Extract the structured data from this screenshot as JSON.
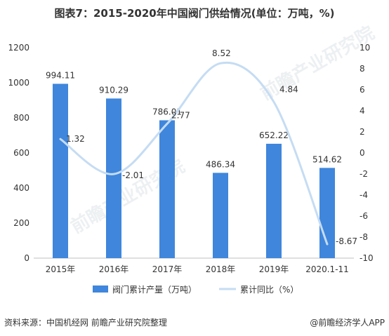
{
  "title": "图表7：2015-2020年中国阀门供给情况(单位：万吨，%)",
  "source": "资料来源：中国机经网 前瞻产业研究院整理",
  "credit": "@前瞻经济学人APP",
  "watermark": "前瞻产业研究院",
  "colors": {
    "bar": "#3f86dc",
    "line": "#c5dcf3",
    "grid": "#e6e6e6",
    "text": "#333333"
  },
  "chart_data": {
    "type": "bar",
    "categories": [
      "2015年",
      "2016年",
      "2017年",
      "2018年",
      "2019年",
      "2020.1-11"
    ],
    "series": [
      {
        "name": "阀门累计产量（万吨）",
        "type": "bar",
        "axis": "left",
        "values": [
          994.11,
          910.29,
          786.01,
          486.34,
          652.22,
          514.62
        ],
        "labels": [
          "994.11",
          "910.29",
          "786.01",
          "486.34",
          "652.22",
          "514.62"
        ]
      },
      {
        "name": "累计同比（%）",
        "type": "line",
        "axis": "right",
        "values": [
          1.32,
          -2.01,
          2.77,
          8.52,
          4.84,
          -8.67
        ],
        "labels": [
          "1.32",
          "-2.01",
          "2.77",
          "8.52",
          "4.84",
          "-8.67"
        ]
      }
    ],
    "y_left": {
      "min": 0,
      "max": 1200,
      "ticks": [
        "0",
        "200",
        "400",
        "600",
        "800",
        "1000",
        "1200"
      ]
    },
    "y_right": {
      "min": -10,
      "max": 10,
      "ticks": [
        "-10",
        "-8",
        "-6",
        "-4",
        "-2",
        "0",
        "2",
        "4",
        "6",
        "8",
        "10"
      ]
    },
    "legend_position": "bottom",
    "grid": false
  }
}
